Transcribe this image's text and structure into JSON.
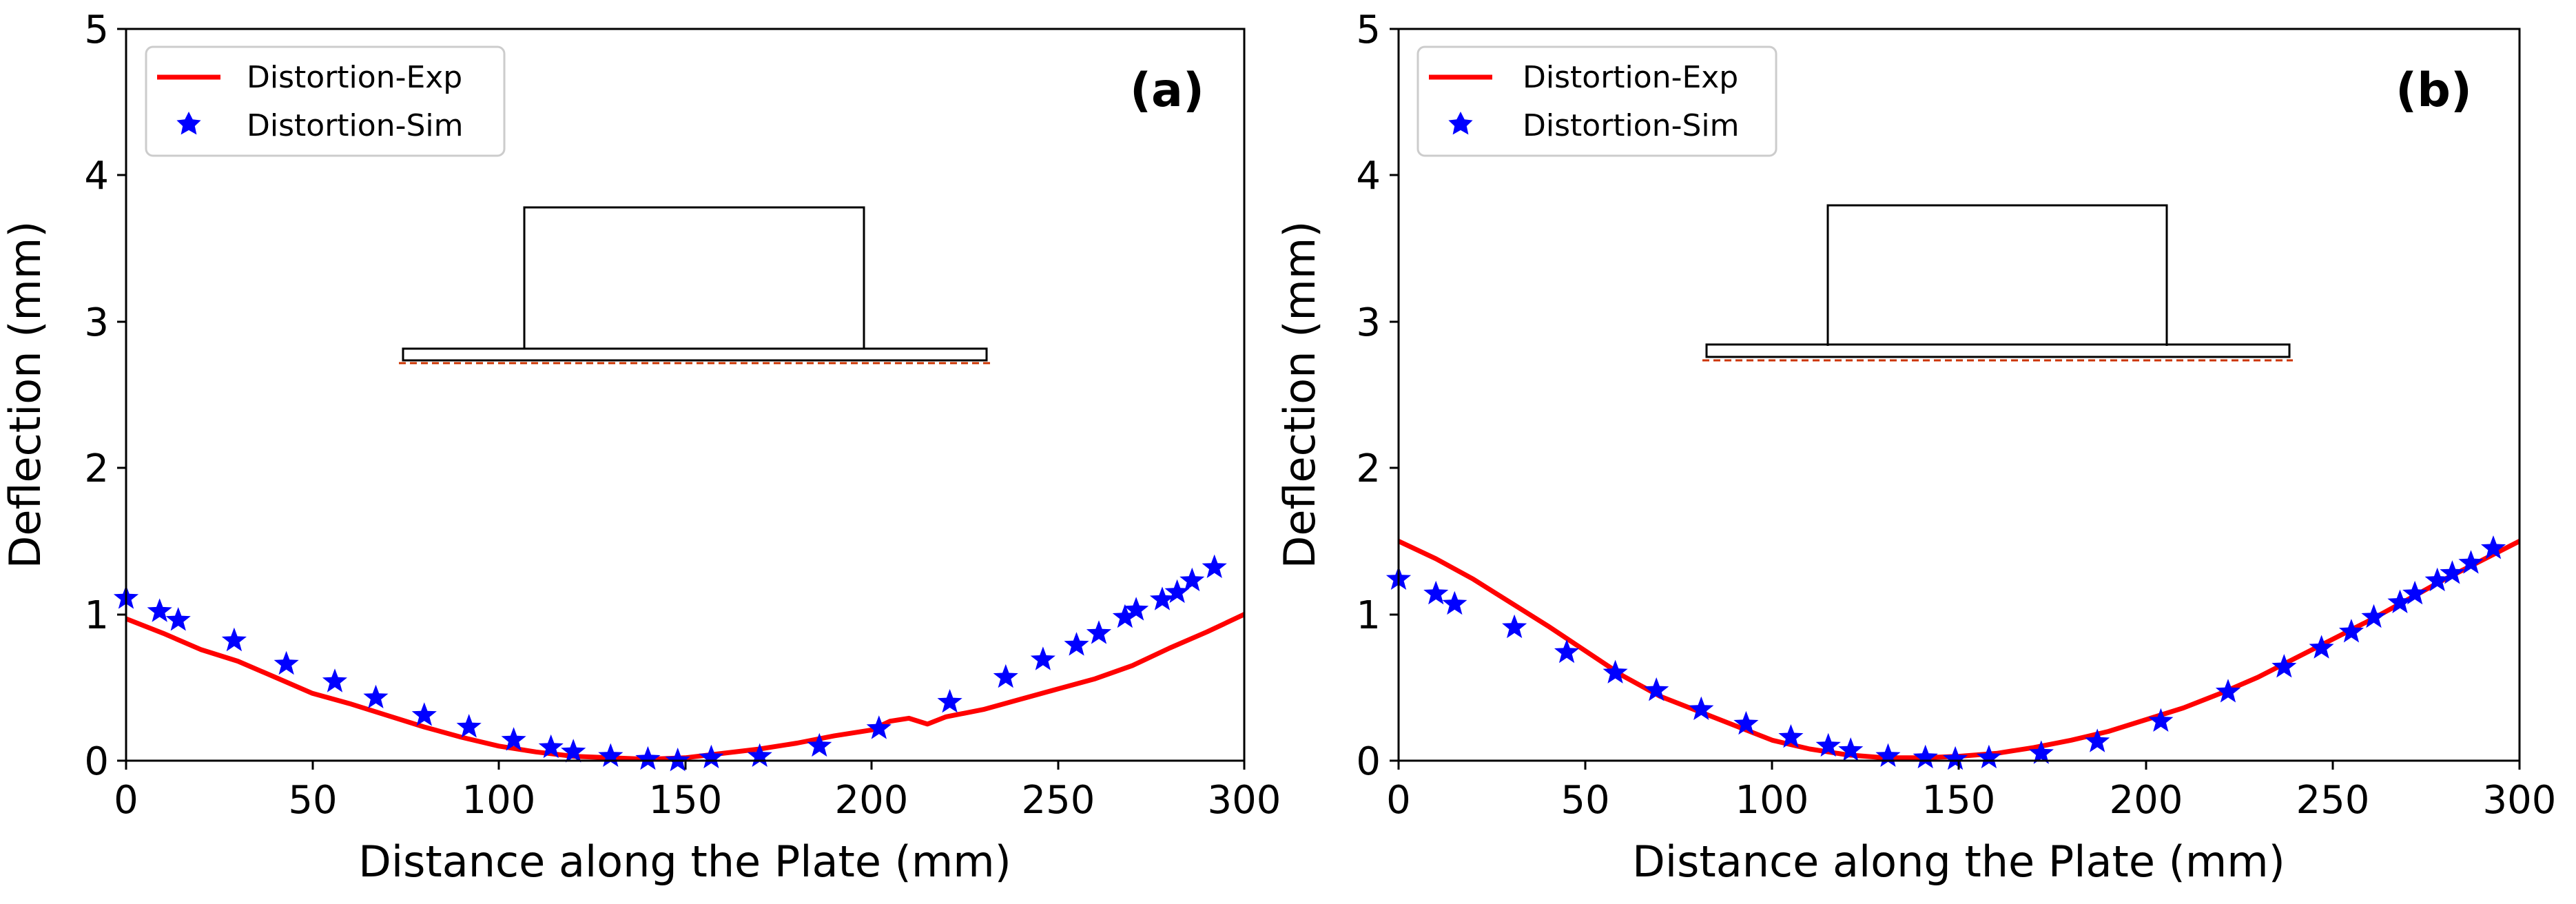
{
  "colors": {
    "exp_line": "#ff0000",
    "sim_marker": "#0000ff",
    "inset_outline": "#000000",
    "inset_dash": "#cc3300"
  },
  "chart_data": [
    {
      "type": "line",
      "panel_label": "(a)",
      "xlabel": "Distance along the Plate (mm)",
      "ylabel": "Deflection (mm)",
      "xlim": [
        0,
        300
      ],
      "ylim": [
        0,
        5
      ],
      "xticks": [
        0,
        50,
        100,
        150,
        200,
        250,
        300
      ],
      "yticks": [
        0,
        1,
        2,
        3,
        4,
        5
      ],
      "legend": {
        "position": "top-left",
        "entries": [
          "Distortion-Exp",
          "Distortion-Sim"
        ]
      },
      "series": [
        {
          "name": "Distortion-Exp",
          "style": "line",
          "x": [
            0,
            10,
            20,
            30,
            40,
            50,
            60,
            70,
            80,
            90,
            100,
            110,
            120,
            130,
            140,
            150,
            160,
            170,
            180,
            190,
            200,
            205,
            210,
            215,
            220,
            230,
            240,
            250,
            260,
            270,
            280,
            290,
            300
          ],
          "y": [
            0.97,
            0.87,
            0.76,
            0.68,
            0.57,
            0.46,
            0.39,
            0.31,
            0.23,
            0.16,
            0.1,
            0.06,
            0.03,
            0.02,
            0.01,
            0.02,
            0.05,
            0.08,
            0.12,
            0.17,
            0.21,
            0.27,
            0.29,
            0.25,
            0.3,
            0.35,
            0.42,
            0.49,
            0.56,
            0.65,
            0.77,
            0.88,
            1.0
          ]
        },
        {
          "name": "Distortion-Sim",
          "style": "star",
          "x": [
            0,
            9,
            14,
            29,
            43,
            56,
            67,
            80,
            92,
            104,
            114,
            120,
            130,
            140,
            148,
            157,
            170,
            186,
            202,
            221,
            236,
            246,
            255,
            261,
            268,
            271,
            278,
            282,
            286,
            292
          ],
          "y": [
            1.11,
            1.02,
            0.96,
            0.82,
            0.66,
            0.54,
            0.43,
            0.31,
            0.23,
            0.14,
            0.09,
            0.06,
            0.03,
            0.01,
            0.0,
            0.02,
            0.03,
            0.1,
            0.22,
            0.4,
            0.57,
            0.69,
            0.79,
            0.87,
            0.98,
            1.03,
            1.1,
            1.15,
            1.23,
            1.32
          ]
        }
      ]
    },
    {
      "type": "line",
      "panel_label": "(b)",
      "xlabel": "Distance along the Plate (mm)",
      "ylabel": "Deflection (mm)",
      "xlim": [
        0,
        300
      ],
      "ylim": [
        0,
        5
      ],
      "xticks": [
        0,
        50,
        100,
        150,
        200,
        250,
        300
      ],
      "yticks": [
        0,
        1,
        2,
        3,
        4,
        5
      ],
      "legend": {
        "position": "top-left",
        "entries": [
          "Distortion-Exp",
          "Distortion-Sim"
        ]
      },
      "series": [
        {
          "name": "Distortion-Exp",
          "style": "line",
          "x": [
            0,
            10,
            20,
            30,
            40,
            50,
            60,
            70,
            80,
            90,
            100,
            110,
            120,
            130,
            140,
            150,
            160,
            170,
            180,
            190,
            200,
            210,
            220,
            230,
            240,
            250,
            260,
            270,
            280,
            290,
            300
          ],
          "y": [
            1.5,
            1.38,
            1.24,
            1.08,
            0.92,
            0.75,
            0.58,
            0.44,
            0.34,
            0.24,
            0.14,
            0.08,
            0.04,
            0.02,
            0.02,
            0.03,
            0.05,
            0.09,
            0.14,
            0.2,
            0.28,
            0.36,
            0.46,
            0.57,
            0.7,
            0.83,
            0.96,
            1.1,
            1.24,
            1.37,
            1.5
          ]
        },
        {
          "name": "Distortion-Sim",
          "style": "star",
          "x": [
            0,
            10,
            15,
            31,
            45,
            58,
            69,
            81,
            93,
            105,
            115,
            121,
            131,
            141,
            149,
            158,
            172,
            187,
            204,
            222,
            237,
            247,
            255,
            261,
            268,
            272,
            278,
            282,
            287,
            293
          ],
          "y": [
            1.24,
            1.14,
            1.07,
            0.91,
            0.74,
            0.6,
            0.48,
            0.35,
            0.25,
            0.16,
            0.1,
            0.07,
            0.03,
            0.02,
            0.01,
            0.02,
            0.05,
            0.13,
            0.27,
            0.47,
            0.64,
            0.77,
            0.88,
            0.98,
            1.08,
            1.14,
            1.23,
            1.28,
            1.35,
            1.45
          ]
        }
      ]
    }
  ]
}
